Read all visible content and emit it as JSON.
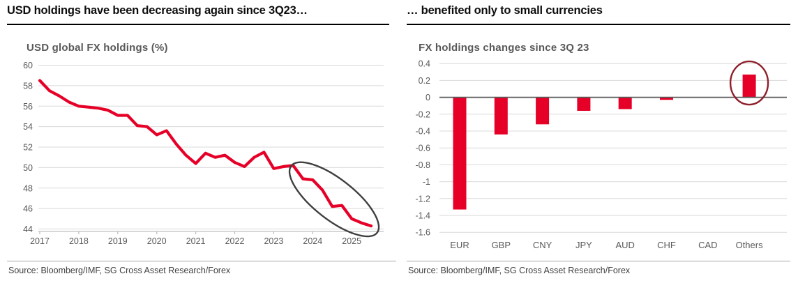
{
  "panels": [
    {
      "header": "USD holdings have been decreasing again since 3Q23…",
      "source": "Source: Bloomberg/IMF, SG Cross Asset Research/Forex"
    },
    {
      "header": "… benefited only to small currencies",
      "source": "Source: Bloomberg/IMF, SG Cross Asset Research/Forex"
    }
  ],
  "colors": {
    "series_red": "#e60028",
    "grid": "#d9d9d9",
    "axis": "#bfbfbf",
    "zero_line": "#595959",
    "axis_text": "#595959",
    "ellipse_gray": "#3f3f3f",
    "ellipse_maroon": "#8d1f2a"
  },
  "chart_data": [
    {
      "type": "line",
      "title": "USD global FX holdings (%)",
      "x_tick_labels": [
        "2017",
        "2018",
        "2019",
        "2020",
        "2021",
        "2022",
        "2023",
        "2024",
        "2025"
      ],
      "y_tick_labels": [
        "60",
        "58",
        "56",
        "54",
        "52",
        "50",
        "48",
        "46",
        "44"
      ],
      "ylim": [
        44,
        60
      ],
      "grid": true,
      "x_start_year": 2017.0,
      "x_step_years": 0.25,
      "values": [
        58.5,
        57.5,
        57.0,
        56.4,
        56.0,
        55.9,
        55.8,
        55.6,
        55.1,
        55.1,
        54.1,
        54.0,
        53.2,
        53.6,
        52.3,
        51.2,
        50.4,
        51.4,
        51.0,
        51.2,
        50.5,
        50.1,
        51.0,
        51.5,
        49.9,
        50.1,
        50.2,
        48.9,
        48.8,
        47.8,
        46.2,
        46.3,
        45.0,
        44.6,
        44.3
      ],
      "annotation": {
        "shape": "ellipse",
        "note": "circle highlighting decline since 3Q23",
        "center_x": 2024.55,
        "center_y": 46.9,
        "color_key": "ellipse_gray"
      }
    },
    {
      "type": "bar",
      "title": "FX holdings changes since 3Q 23",
      "categories": [
        "EUR",
        "GBP",
        "CNY",
        "JPY",
        "AUD",
        "CHF",
        "CAD",
        "Others"
      ],
      "values": [
        -1.33,
        -0.44,
        -0.32,
        -0.16,
        -0.14,
        -0.03,
        0.0,
        0.27
      ],
      "y_tick_labels": [
        "0.4",
        "0.2",
        "0",
        "-0.2",
        "-0.4",
        "-0.6",
        "-0.8",
        "-1",
        "-1.2",
        "-1.4",
        "-1.6"
      ],
      "ylim": [
        -1.6,
        0.4
      ],
      "grid": true,
      "annotation": {
        "shape": "ellipse",
        "note": "circle highlighting Others increase",
        "category": "Others",
        "center_value": 0.17,
        "color_key": "ellipse_maroon"
      }
    }
  ]
}
